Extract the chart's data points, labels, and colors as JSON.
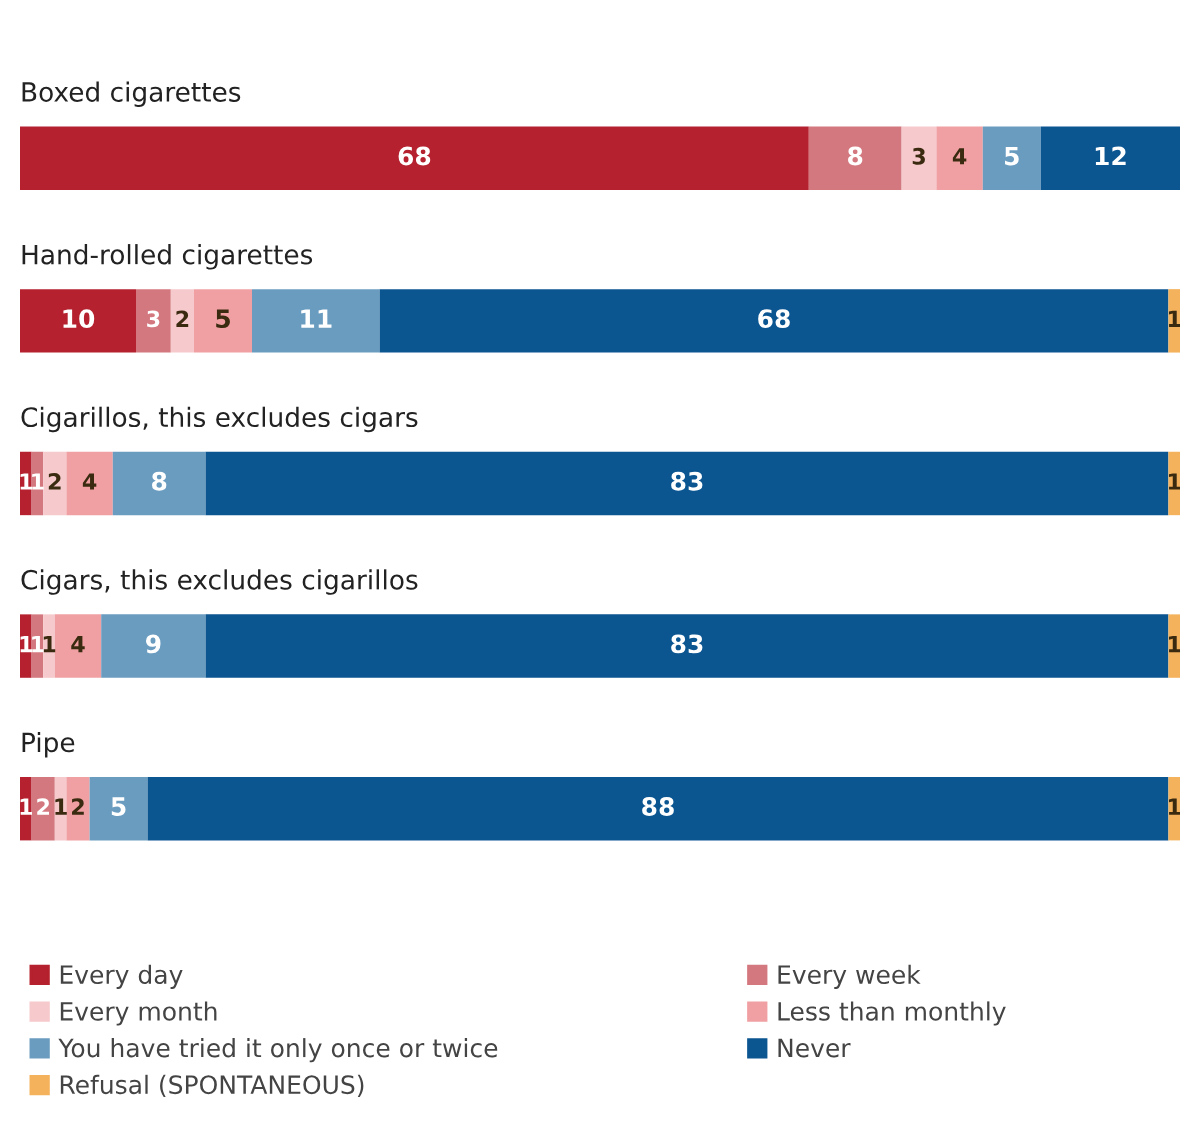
{
  "chart_data": {
    "type": "bar",
    "orientation": "horizontal",
    "stacked": true,
    "data_labels": true,
    "legend": "bottom",
    "categories": [
      "Boxed cigarettes",
      "Hand-rolled cigarettes",
      "Cigarillos, this excludes cigars",
      "Cigars, this excludes cigarillos",
      "Pipe"
    ],
    "series": [
      {
        "name": "Every day",
        "color": "#b5212e",
        "values": [
          68,
          10,
          1,
          1,
          1
        ]
      },
      {
        "name": "Every week",
        "color": "#d4787f",
        "values": [
          8,
          3,
          1,
          1,
          2
        ]
      },
      {
        "name": "Every month",
        "color": "#f6c9cc",
        "values": [
          3,
          2,
          2,
          1,
          1
        ]
      },
      {
        "name": "Less than monthly",
        "color": "#f0a0a3",
        "values": [
          4,
          5,
          4,
          4,
          2
        ]
      },
      {
        "name": "You have tried it only once or twice",
        "color": "#6a9cc0",
        "values": [
          5,
          11,
          8,
          9,
          5
        ]
      },
      {
        "name": "Never",
        "color": "#0b5591",
        "values": [
          12,
          68,
          83,
          83,
          88
        ]
      },
      {
        "name": "Refusal (SPONTANEOUS)",
        "color": "#f5b25c",
        "values": [
          null,
          1,
          1,
          1,
          1
        ]
      }
    ]
  }
}
